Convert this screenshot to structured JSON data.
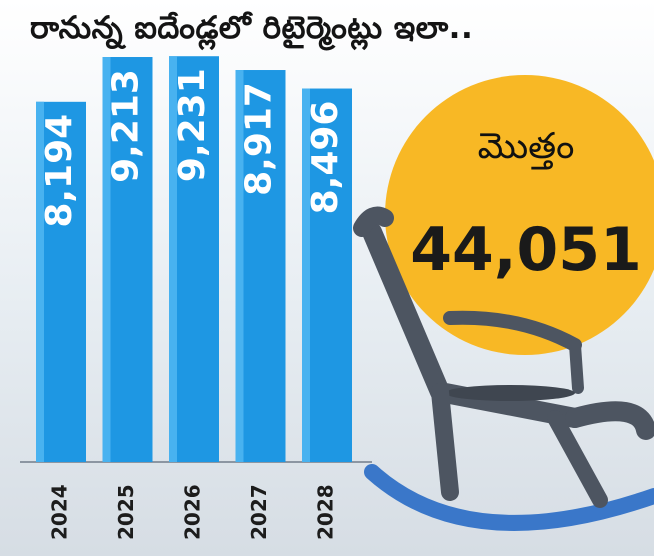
{
  "header": {
    "title": "రానున్న ఐదేండ్లలో రిటైర్మెంట్లు ఇలా.."
  },
  "total": {
    "label": "మొత్తం",
    "value": "44,051"
  },
  "colors": {
    "bar": "#1e97e3",
    "bar_highlight": "#48b2f0",
    "circle": "#f8b825",
    "chair": "#4d5561",
    "rocker": "#3a77c9"
  },
  "icons": [
    "rocking-chair-icon"
  ],
  "chart_data": {
    "type": "bar",
    "title": "రానున్న ఐదేండ్లలో రిటైర్మెంట్లు ఇలా..",
    "categories": [
      "2024",
      "2025",
      "2026",
      "2027",
      "2028"
    ],
    "values": [
      8194,
      9213,
      9231,
      8917,
      8496
    ],
    "value_labels": [
      "8,194",
      "9,213",
      "9,231",
      "8,917",
      "8,496"
    ],
    "ylim": [
      0,
      9600
    ],
    "xlabel": "",
    "ylabel": "",
    "grid": false,
    "orientation": "vertical",
    "label_rotation": -90
  }
}
